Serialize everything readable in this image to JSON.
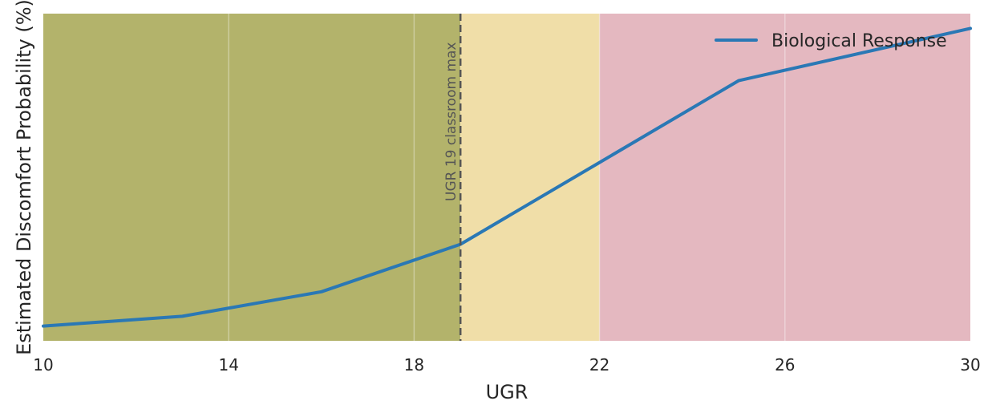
{
  "chart_data": {
    "type": "line",
    "xlabel": "UGR",
    "ylabel": "Estimated Discomfort Probability (%)",
    "xlim": [
      10,
      30
    ],
    "ylim": [
      0,
      100
    ],
    "xticks": [
      "10",
      "14",
      "18",
      "22",
      "26",
      "30"
    ],
    "grid": true,
    "legend_position": "top-right",
    "series": [
      {
        "name": "Biological Response",
        "color": "#2a78b5",
        "x": [
          10,
          13,
          16,
          19,
          22,
          25,
          30
        ],
        "y": [
          4.5,
          7.5,
          15,
          29.5,
          54.5,
          79.5,
          95.5
        ]
      }
    ],
    "zones": [
      {
        "from": 10,
        "to": 19,
        "color": "#b3b36b"
      },
      {
        "from": 19,
        "to": 22,
        "color": "#f0dea8"
      },
      {
        "from": 22,
        "to": 30,
        "color": "#e4b8c0"
      }
    ],
    "reference_line": {
      "x": 19,
      "label": "UGR 19 classroom max",
      "color": "#555555"
    }
  }
}
